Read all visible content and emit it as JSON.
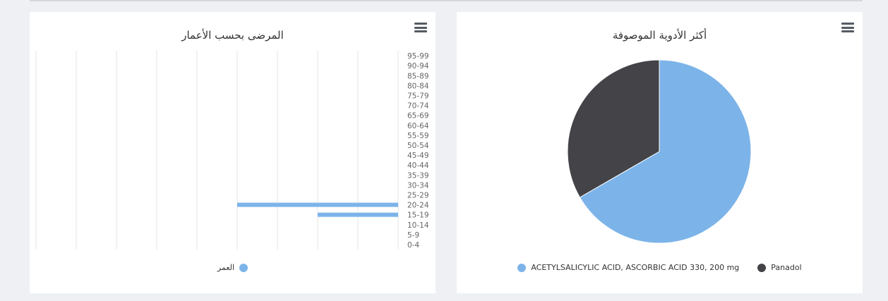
{
  "colors": {
    "light_blue": "#7cb4e9",
    "dark": "#434348",
    "grid": "#e6e6e6",
    "axis_text": "#666666"
  },
  "age_chart": {
    "title": "المرضى بحسب الأعمار",
    "menu_icon": "hamburger-icon",
    "chart_data": {
      "type": "bar",
      "orientation": "horizontal",
      "categories": [
        "0-4",
        "5-9",
        "10-14",
        "15-19",
        "20-24",
        "25-29",
        "30-34",
        "35-39",
        "40-44",
        "45-49",
        "50-54",
        "55-59",
        "60-64",
        "65-69",
        "70-74",
        "75-79",
        "80-84",
        "85-89",
        "90-94",
        "95-99"
      ],
      "series": [
        {
          "name": "العمر",
          "values": [
            0,
            0,
            0,
            2,
            4,
            0,
            0,
            0,
            0,
            0,
            0,
            0,
            0,
            0,
            0,
            0,
            0,
            0,
            0,
            0
          ]
        }
      ],
      "xlim": [
        0,
        9
      ],
      "x_reversed": true,
      "category_axis_position": "right",
      "grid": true,
      "legend": "bottom-center"
    }
  },
  "drug_chart": {
    "title": "أكثر الأدوية الموصوفة",
    "menu_icon": "hamburger-icon",
    "chart_data": {
      "type": "pie",
      "slices": [
        {
          "name": "ACETYLSALICYLIC ACID, ASCORBIC ACID 330, 200 mg",
          "value": 2,
          "color": "#7cb4e9"
        },
        {
          "name": "Panadol",
          "value": 1,
          "color": "#434348"
        }
      ],
      "legend": "bottom-center"
    }
  }
}
